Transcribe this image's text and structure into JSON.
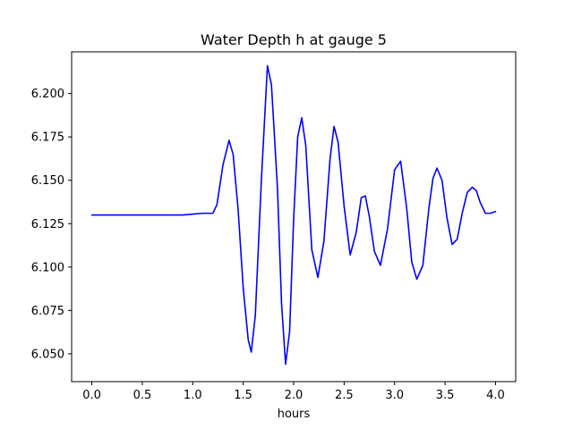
{
  "chart_data": {
    "type": "line",
    "title": "Water Depth h at gauge 5",
    "xlabel": "hours",
    "ylabel": "",
    "xlim": [
      -0.2,
      4.2
    ],
    "ylim": [
      6.034,
      6.224
    ],
    "x_ticks": [
      0.0,
      0.5,
      1.0,
      1.5,
      2.0,
      2.5,
      3.0,
      3.5,
      4.0
    ],
    "x_tick_labels": [
      "0.0",
      "0.5",
      "1.0",
      "1.5",
      "2.0",
      "2.5",
      "3.0",
      "3.5",
      "4.0"
    ],
    "y_ticks": [
      6.05,
      6.075,
      6.1,
      6.125,
      6.15,
      6.175,
      6.2
    ],
    "y_tick_labels": [
      "6.050",
      "6.075",
      "6.100",
      "6.125",
      "6.150",
      "6.175",
      "6.200"
    ],
    "grid": false,
    "series": [
      {
        "color": "#0000ff",
        "x": [
          0.0,
          0.5,
          0.9,
          1.1,
          1.2,
          1.24,
          1.3,
          1.36,
          1.4,
          1.45,
          1.5,
          1.55,
          1.58,
          1.62,
          1.68,
          1.74,
          1.78,
          1.84,
          1.88,
          1.92,
          1.96,
          2.0,
          2.04,
          2.08,
          2.12,
          2.18,
          2.24,
          2.3,
          2.36,
          2.4,
          2.44,
          2.5,
          2.56,
          2.62,
          2.67,
          2.71,
          2.75,
          2.8,
          2.86,
          2.93,
          3.0,
          3.06,
          3.12,
          3.17,
          3.22,
          3.28,
          3.34,
          3.38,
          3.42,
          3.47,
          3.52,
          3.57,
          3.62,
          3.67,
          3.72,
          3.77,
          3.81,
          3.85,
          3.9,
          3.95,
          4.0
        ],
        "y": [
          6.13,
          6.13,
          6.13,
          6.131,
          6.131,
          6.136,
          6.159,
          6.173,
          6.165,
          6.133,
          6.088,
          6.058,
          6.051,
          6.072,
          6.15,
          6.216,
          6.205,
          6.145,
          6.079,
          6.044,
          6.063,
          6.128,
          6.175,
          6.186,
          6.17,
          6.11,
          6.094,
          6.115,
          6.162,
          6.181,
          6.172,
          6.135,
          6.107,
          6.12,
          6.14,
          6.141,
          6.129,
          6.109,
          6.101,
          6.122,
          6.156,
          6.161,
          6.134,
          6.103,
          6.093,
          6.101,
          6.134,
          6.151,
          6.157,
          6.15,
          6.128,
          6.113,
          6.116,
          6.131,
          6.143,
          6.146,
          6.144,
          6.137,
          6.131,
          6.131,
          6.132
        ]
      }
    ]
  }
}
